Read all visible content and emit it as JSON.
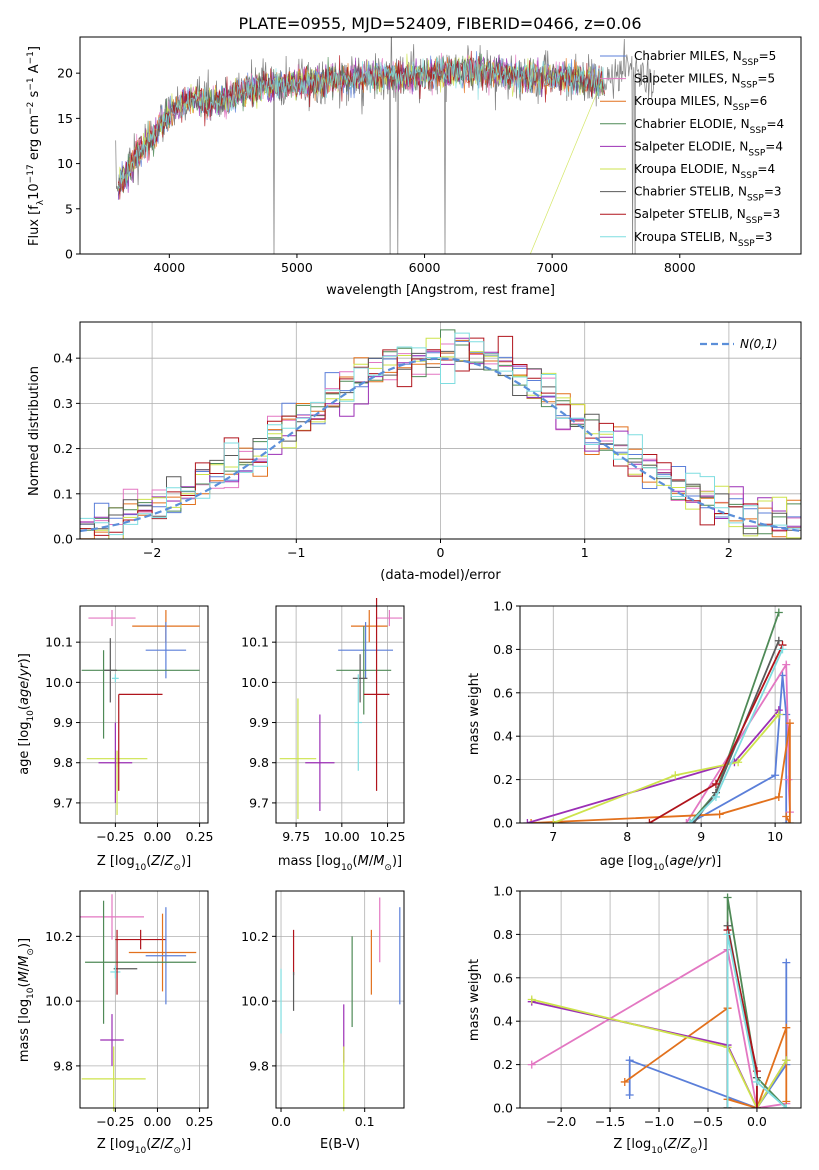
{
  "title": "PLATE=0955, MJD=52409, FIBERID=0466, z=0.06",
  "colors": {
    "Chabrier MILES": "#5b7fd9",
    "Salpeter MILES": "#e377c2",
    "Kroupa MILES": "#e2711d",
    "Chabrier ELODIE": "#4f8a57",
    "Salpeter ELODIE": "#9b2fb5",
    "Kroupa ELODIE": "#cde34c",
    "Chabrier STELIB": "#5a5a5a",
    "Salpeter STELIB": "#b0141c",
    "Kroupa STELIB": "#7fdde0",
    "data": "#808080",
    "gaussian": "#5b8fd9"
  },
  "chart_data": [
    {
      "id": "spectrum",
      "type": "line",
      "xlabel": "wavelength [Angstrom, rest frame]",
      "ylabel": "Flux [f_λ10^-17 erg cm^-2 s^-1 A^-1]",
      "xlim": [
        3300,
        8950
      ],
      "ylim": [
        0,
        24
      ],
      "xticks": [
        4000,
        5000,
        6000,
        7000,
        8000
      ],
      "yticks": [
        0,
        5,
        10,
        15,
        20
      ],
      "legend_position": "top-right",
      "legend": [
        {
          "model": "Chabrier MILES",
          "nssp": "5"
        },
        {
          "model": "Salpeter MILES",
          "nssp": "5"
        },
        {
          "model": "Kroupa MILES",
          "nssp": "6"
        },
        {
          "model": "Chabrier ELODIE",
          "nssp": "4"
        },
        {
          "model": "Salpeter ELODIE",
          "nssp": "4"
        },
        {
          "model": "Kroupa ELODIE",
          "nssp": "4"
        },
        {
          "model": "Chabrier STELIB",
          "nssp": "3"
        },
        {
          "model": "Salpeter STELIB",
          "nssp": "3"
        },
        {
          "model": "Kroupa STELIB",
          "nssp": "3"
        }
      ],
      "continuum": {
        "x": [
          3600,
          3750,
          3900,
          4000,
          4100,
          4200,
          4300,
          4500,
          4700,
          5000,
          5300,
          5600,
          6000,
          6300,
          6600,
          6800,
          7000,
          7200,
          7400
        ],
        "y": [
          7.5,
          11,
          13.5,
          15.5,
          16.5,
          17.2,
          16.5,
          17.5,
          18.5,
          18.8,
          19.2,
          19.6,
          19.8,
          20.2,
          20.0,
          19.5,
          19.6,
          19.3,
          19.0
        ]
      },
      "data_extra": {
        "x": [
          7400,
          7600,
          7800
        ],
        "y": [
          19.0,
          20.5,
          18.5
        ]
      }
    },
    {
      "id": "residuals",
      "type": "histogram",
      "xlabel": "(data-model)/error",
      "ylabel": "Normed distribution",
      "xlim": [
        -2.5,
        2.5
      ],
      "ylim": [
        0,
        0.48
      ],
      "xticks": [
        -2,
        -1,
        0,
        1,
        2
      ],
      "yticks": [
        0.0,
        0.1,
        0.2,
        0.3,
        0.4
      ],
      "legend_position": "top-right",
      "gaussian_label": "N(0,1)",
      "grid": true
    },
    {
      "id": "age-vs-Z",
      "type": "errorbar",
      "xlabel": "Z [log10(Z/Z_sun)]",
      "ylabel": "age  [log10(age/yr)]",
      "xlim": [
        -0.46,
        0.3
      ],
      "ylim": [
        9.65,
        10.19
      ],
      "xticks": [
        -0.25,
        0.0,
        0.25
      ],
      "yticks": [
        9.7,
        9.8,
        9.9,
        10.0,
        10.1
      ],
      "points": [
        {
          "model": "Salpeter MILES",
          "x": -0.27,
          "xerr": 0.14,
          "y": 10.16,
          "yerr": 0.02
        },
        {
          "model": "Kroupa MILES",
          "x": 0.05,
          "xerr": 0.2,
          "y": 10.14,
          "yerr": 0.04
        },
        {
          "model": "Chabrier MILES",
          "x": 0.05,
          "xerr": 0.12,
          "y": 10.08,
          "yerr": 0.07
        },
        {
          "model": "Chabrier ELODIE",
          "x": -0.1,
          "xerr": 0.35,
          "y": 10.03,
          "yerr": 0.0
        },
        {
          "model": "Chabrier STELIB",
          "x": -0.28,
          "xerr": 0.04,
          "y": 10.03,
          "yerr": 0.08
        },
        {
          "model": "Kroupa STELIB",
          "x": -0.25,
          "xerr": 0.02,
          "y": 10.01,
          "yerr": 0.01
        },
        {
          "model": "Salpeter STELIB",
          "x": -0.1,
          "xerr": 0.13,
          "y": 9.97,
          "yerr": 0.0
        },
        {
          "model": "Kroupa ELODIE",
          "x": -0.24,
          "xerr": 0.18,
          "y": 9.81,
          "yerr": 0.02
        },
        {
          "model": "Salpeter ELODIE",
          "x": -0.25,
          "xerr": 0.1,
          "y": 9.8,
          "yerr": 0.1
        },
        {
          "model": "Chabrier ELODIE",
          "x": -0.32,
          "xerr": 0.0,
          "y": 9.97,
          "yerr": 0.11
        },
        {
          "model": "Kroupa ELODIE",
          "x": -0.24,
          "xerr": 0.0,
          "y": 9.75,
          "yerr": 0.08
        },
        {
          "model": "Salpeter STELIB",
          "x": -0.23,
          "xerr": 0.0,
          "y": 9.85,
          "yerr": 0.12
        }
      ]
    },
    {
      "id": "age-vs-mass",
      "type": "errorbar",
      "xlabel": "mass [log10(M/M_sun)]",
      "ylabel": "",
      "xlim": [
        9.64,
        10.34
      ],
      "ylim": [
        9.65,
        10.19
      ],
      "xticks": [
        9.75,
        10.0,
        10.25
      ],
      "yticks": [
        9.7,
        9.8,
        9.9,
        10.0,
        10.1
      ],
      "points": [
        {
          "model": "Salpeter MILES",
          "x": 10.26,
          "xerr": 0.07,
          "y": 10.16,
          "yerr": 0.02
        },
        {
          "model": "Kroupa MILES",
          "x": 10.15,
          "xerr": 0.1,
          "y": 10.14,
          "yerr": 0.04
        },
        {
          "model": "Chabrier MILES",
          "x": 10.13,
          "xerr": 0.15,
          "y": 10.08,
          "yerr": 0.07
        },
        {
          "model": "Chabrier ELODIE",
          "x": 10.12,
          "xerr": 0.15,
          "y": 10.03,
          "yerr": 0.11
        },
        {
          "model": "Chabrier STELIB",
          "x": 10.1,
          "xerr": 0.04,
          "y": 10.01,
          "yerr": 0.06
        },
        {
          "model": "Kroupa STELIB",
          "x": 10.09,
          "xerr": 0.02,
          "y": 9.9,
          "yerr": 0.12
        },
        {
          "model": "Salpeter STELIB",
          "x": 10.19,
          "xerr": 0.07,
          "y": 9.97,
          "yerr": 0.24
        },
        {
          "model": "Kroupa ELODIE",
          "x": 9.76,
          "xerr": 0.1,
          "y": 9.81,
          "yerr": 0.15
        },
        {
          "model": "Salpeter ELODIE",
          "x": 9.88,
          "xerr": 0.08,
          "y": 9.8,
          "yerr": 0.12
        }
      ]
    },
    {
      "id": "mass-weight-vs-age",
      "type": "line",
      "xlabel": "age  [log10(age/yr)]",
      "ylabel": "mass weight",
      "xlim": [
        6.55,
        10.35
      ],
      "ylim": [
        0,
        1.0
      ],
      "xticks": [
        7,
        8,
        9,
        10
      ],
      "yticks": [
        0.0,
        0.2,
        0.4,
        0.6,
        0.8,
        1.0
      ],
      "grid": true,
      "series": [
        {
          "model": "Chabrier MILES",
          "x": [
            8.85,
            10.0,
            10.1,
            10.15,
            10.15
          ],
          "y": [
            0.0,
            0.22,
            0.68,
            0.5,
            0.0
          ]
        },
        {
          "model": "Salpeter MILES",
          "x": [
            8.8,
            10.15,
            10.2,
            10.18
          ],
          "y": [
            0.0,
            0.73,
            0.05,
            0.2
          ]
        },
        {
          "model": "Kroupa MILES",
          "x": [
            6.7,
            9.25,
            10.05,
            10.2,
            10.2,
            10.15
          ],
          "y": [
            0.0,
            0.04,
            0.12,
            0.46,
            0.0,
            0.03
          ]
        },
        {
          "model": "Chabrier ELODIE",
          "x": [
            8.85,
            9.2,
            10.05
          ],
          "y": [
            0.0,
            0.14,
            0.97
          ]
        },
        {
          "model": "Salpeter ELODIE",
          "x": [
            6.65,
            9.45,
            10.05
          ],
          "y": [
            0.0,
            0.28,
            0.52
          ]
        },
        {
          "model": "Kroupa ELODIE",
          "x": [
            7.0,
            8.65,
            9.5,
            10.05
          ],
          "y": [
            0.0,
            0.22,
            0.28,
            0.5
          ]
        },
        {
          "model": "Chabrier STELIB",
          "x": [
            8.9,
            9.2,
            10.05
          ],
          "y": [
            0.0,
            0.14,
            0.84
          ]
        },
        {
          "model": "Salpeter STELIB",
          "x": [
            8.3,
            9.2,
            10.1
          ],
          "y": [
            0.0,
            0.18,
            0.82
          ]
        },
        {
          "model": "Kroupa STELIB",
          "x": [
            8.85,
            9.2,
            10.1
          ],
          "y": [
            0.0,
            0.12,
            0.8
          ]
        }
      ]
    },
    {
      "id": "mass-vs-Z",
      "type": "errorbar",
      "xlabel": "Z [log10(Z/Z_sun)]",
      "ylabel": "mass [log10(M/M_sun)]",
      "xlim": [
        -0.46,
        0.3
      ],
      "ylim": [
        9.67,
        10.34
      ],
      "xticks": [
        -0.25,
        0.0,
        0.25
      ],
      "yticks": [
        9.8,
        10.0,
        10.2
      ],
      "points": [
        {
          "model": "Salpeter MILES",
          "x": -0.27,
          "xerr": 0.19,
          "y": 10.26,
          "yerr": 0.07
        },
        {
          "model": "Salpeter STELIB",
          "x": -0.1,
          "xerr": 0.15,
          "y": 10.19,
          "yerr": 0.03
        },
        {
          "model": "Kroupa MILES",
          "x": 0.03,
          "xerr": 0.2,
          "y": 10.15,
          "yerr": 0.12
        },
        {
          "model": "Chabrier MILES",
          "x": 0.05,
          "xerr": 0.12,
          "y": 10.14,
          "yerr": 0.15
        },
        {
          "model": "Chabrier ELODIE",
          "x": -0.1,
          "xerr": 0.33,
          "y": 10.12,
          "yerr": 0.0
        },
        {
          "model": "Chabrier STELIB",
          "x": -0.19,
          "xerr": 0.07,
          "y": 10.1,
          "yerr": 0.0
        },
        {
          "model": "Kroupa STELIB",
          "x": -0.25,
          "xerr": 0.03,
          "y": 10.09,
          "yerr": 0.02
        },
        {
          "model": "Chabrier ELODIE",
          "x": -0.32,
          "xerr": 0.0,
          "y": 10.12,
          "yerr": 0.19
        },
        {
          "model": "Salpeter ELODIE",
          "x": -0.27,
          "xerr": 0.07,
          "y": 9.88,
          "yerr": 0.08
        },
        {
          "model": "Kroupa ELODIE",
          "x": -0.26,
          "xerr": 0.19,
          "y": 9.76,
          "yerr": 0.1
        },
        {
          "model": "Salpeter STELIB",
          "x": -0.24,
          "xerr": 0.0,
          "y": 10.12,
          "yerr": 0.1
        }
      ]
    },
    {
      "id": "mass-vs-EBV",
      "type": "errorbar",
      "xlabel": "E(B-V)",
      "ylabel": "",
      "xlim": [
        -0.006,
        0.147
      ],
      "ylim": [
        9.67,
        10.34
      ],
      "xticks": [
        0.0,
        0.1
      ],
      "yticks": [
        9.8,
        10.0,
        10.2
      ],
      "points": [
        {
          "model": "Kroupa STELIB",
          "x": 0.0,
          "xerr": 0.0,
          "y": 10.0,
          "yerr": 0.1
        },
        {
          "model": "Salpeter STELIB",
          "x": 0.015,
          "xerr": 0.0,
          "y": 10.15,
          "yerr": 0.07
        },
        {
          "model": "Chabrier STELIB",
          "x": 0.015,
          "xerr": 0.0,
          "y": 10.03,
          "yerr": 0.06
        },
        {
          "model": "Salpeter ELODIE",
          "x": 0.075,
          "xerr": 0.0,
          "y": 9.9,
          "yerr": 0.09
        },
        {
          "model": "Kroupa ELODIE",
          "x": 0.075,
          "xerr": 0.0,
          "y": 9.76,
          "yerr": 0.1
        },
        {
          "model": "Chabrier ELODIE",
          "x": 0.085,
          "xerr": 0.0,
          "y": 10.06,
          "yerr": 0.14
        },
        {
          "model": "Kroupa MILES",
          "x": 0.108,
          "xerr": 0.0,
          "y": 10.12,
          "yerr": 0.1
        },
        {
          "model": "Salpeter MILES",
          "x": 0.118,
          "xerr": 0.0,
          "y": 10.22,
          "yerr": 0.1
        },
        {
          "model": "Chabrier MILES",
          "x": 0.142,
          "xerr": 0.0,
          "y": 10.14,
          "yerr": 0.15
        }
      ]
    },
    {
      "id": "mass-weight-vs-Z",
      "type": "line",
      "xlabel": "Z [log10(Z/Z_sun)]",
      "ylabel": "mass weight",
      "xlim": [
        -2.42,
        0.45
      ],
      "ylim": [
        0,
        1.0
      ],
      "xticks": [
        -2.0,
        -1.5,
        -1.0,
        -0.5,
        0.0
      ],
      "yticks": [
        0.0,
        0.2,
        0.4,
        0.6,
        0.8,
        1.0
      ],
      "grid": true,
      "series": [
        {
          "model": "Chabrier MILES",
          "x": [
            -1.3,
            -1.3,
            0.0,
            0.3,
            0.3
          ],
          "y": [
            0.06,
            0.22,
            0.0,
            0.2,
            0.67
          ]
        },
        {
          "model": "Salpeter MILES",
          "x": [
            -2.3,
            -0.3,
            0.0,
            0.3
          ],
          "y": [
            0.2,
            0.73,
            0.0,
            0.02
          ]
        },
        {
          "model": "Kroupa MILES",
          "x": [
            -1.35,
            -0.3,
            -0.3,
            0.0,
            0.3,
            0.3
          ],
          "y": [
            0.12,
            0.46,
            0.04,
            0.0,
            0.37,
            0.03
          ]
        },
        {
          "model": "Chabrier ELODIE",
          "x": [
            -0.3,
            -0.3,
            0.0,
            0.3
          ],
          "y": [
            0.0,
            0.97,
            0.14,
            0.0
          ]
        },
        {
          "model": "Salpeter ELODIE",
          "x": [
            -2.3,
            -0.3,
            0.0,
            0.3
          ],
          "y": [
            0.49,
            0.29,
            0.0,
            0.22
          ]
        },
        {
          "model": "Kroupa ELODIE",
          "x": [
            -2.3,
            -0.3,
            0.0,
            0.3
          ],
          "y": [
            0.5,
            0.28,
            0.0,
            0.22
          ]
        },
        {
          "model": "Chabrier STELIB",
          "x": [
            -0.3,
            -0.3,
            0.0,
            0.0
          ],
          "y": [
            0.0,
            0.84,
            0.14,
            0.0
          ]
        },
        {
          "model": "Salpeter STELIB",
          "x": [
            -0.3,
            -0.3,
            0.0,
            0.0
          ],
          "y": [
            0.0,
            0.82,
            0.17,
            0.0
          ]
        },
        {
          "model": "Kroupa STELIB",
          "x": [
            -0.3,
            -0.3,
            0.0,
            0.3
          ],
          "y": [
            0.0,
            0.8,
            0.12,
            0.0
          ]
        }
      ]
    }
  ]
}
